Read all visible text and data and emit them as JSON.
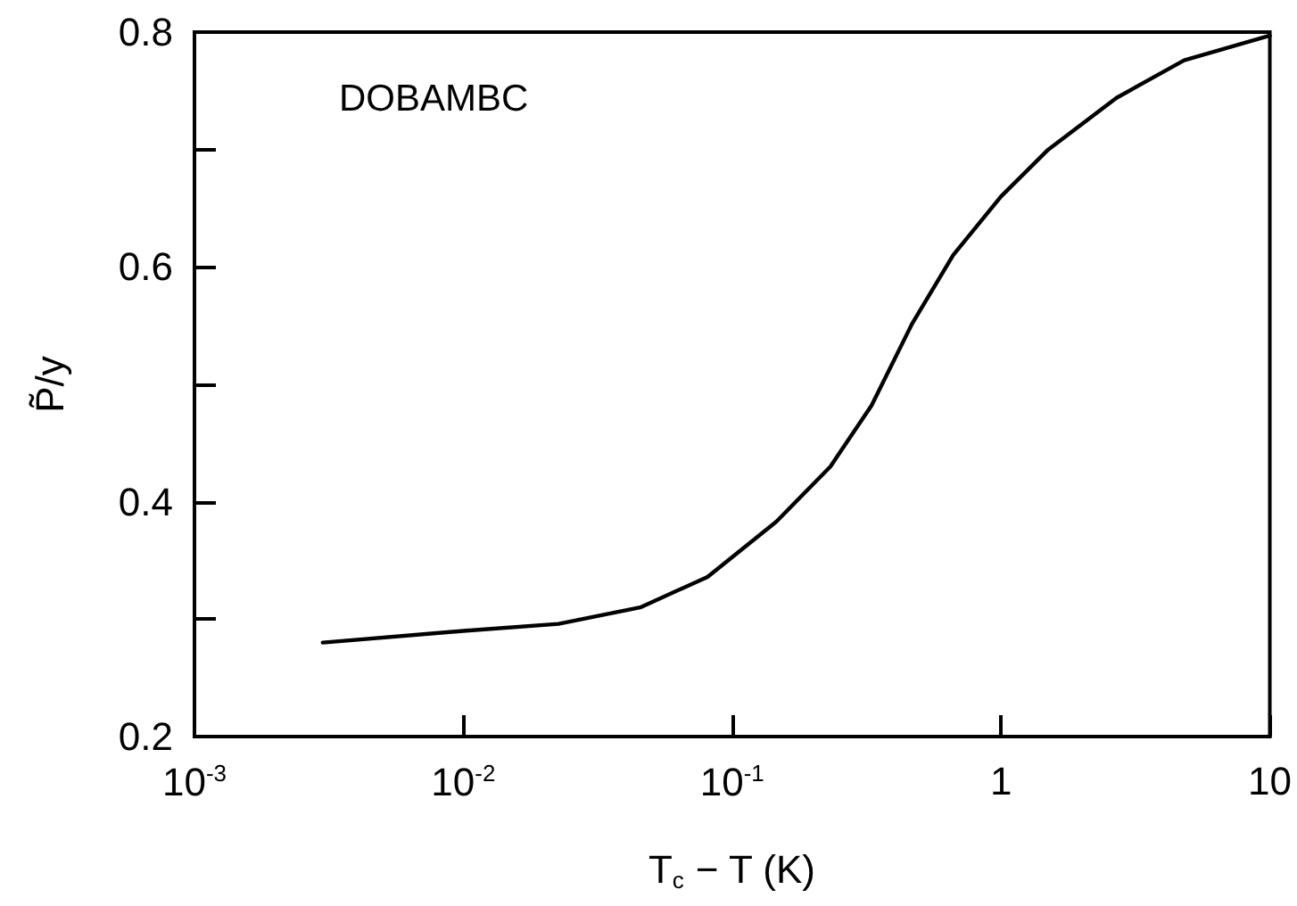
{
  "chart_data": {
    "type": "line",
    "xlabel": "T$_{c}$ − T (K)",
    "ylabel": "P̃/y",
    "annotations": [
      "DOBAMBC"
    ],
    "x": [
      0.003,
      0.01,
      0.0226,
      0.0455,
      0.081,
      0.146,
      0.232,
      0.33,
      0.468,
      0.664,
      1,
      1.5,
      2.69,
      4.8,
      10
    ],
    "series": [
      {
        "color": "#000000",
        "values": [
          0.28,
          0.29,
          0.296,
          0.31,
          0.336,
          0.383,
          0.43,
          0.482,
          0.552,
          0.61,
          0.66,
          0.7,
          0.744,
          0.776,
          0.797
        ]
      }
    ],
    "log": "x",
    "xlim": [
      0.001,
      10
    ],
    "xticks": [
      {
        "value": 0.001,
        "label": "10$^{-3}$"
      },
      {
        "value": 0.01,
        "label": "10$^{-2}$"
      },
      {
        "value": 0.1,
        "label": "10$^{-1}$"
      },
      1,
      10
    ],
    "ylim": [
      0.2,
      0.8
    ],
    "yticks": [
      0.2,
      {
        "value": 0.3,
        "label": null
      },
      0.4,
      {
        "value": 0.5,
        "label": null
      },
      0.6,
      {
        "value": 0.7,
        "label": null
      },
      0.8
    ],
    "marker": "none",
    "line_style": "solid"
  }
}
